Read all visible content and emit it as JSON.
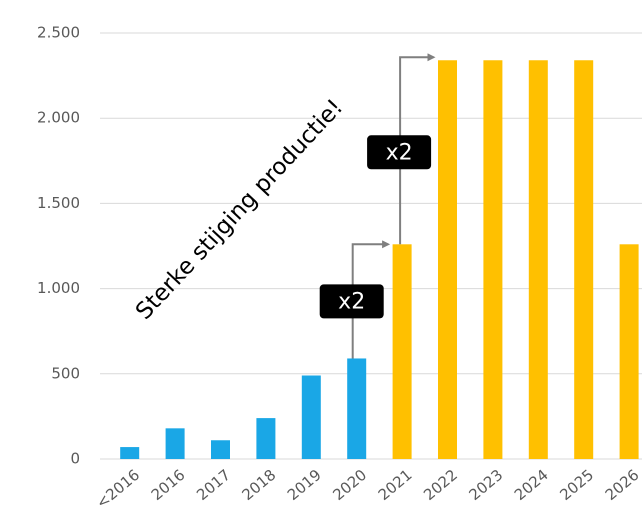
{
  "chart_data": {
    "type": "bar",
    "categories": [
      "<2016",
      "2016",
      "2017",
      "2018",
      "2019",
      "2020",
      "2021",
      "2022",
      "2023",
      "2024",
      "2025",
      "2026"
    ],
    "values": [
      70,
      180,
      110,
      240,
      490,
      590,
      1260,
      2340,
      2340,
      2340,
      2340,
      1260
    ],
    "colors": [
      "#1aa7e6",
      "#1aa7e6",
      "#1aa7e6",
      "#1aa7e6",
      "#1aa7e6",
      "#1aa7e6",
      "#ffc000",
      "#ffc000",
      "#ffc000",
      "#ffc000",
      "#ffc000",
      "#ffc000"
    ],
    "ylim": [
      0,
      2500
    ],
    "yticks": [
      0,
      500,
      {
        "value": 1000,
        "label": "1.000"
      },
      {
        "value": 1500,
        "label": "1.500"
      },
      {
        "value": 2000,
        "label": "2.000"
      },
      {
        "value": 2500,
        "label": "2.500"
      }
    ],
    "grid": true,
    "annotations": [
      "Sterke stijging productie!",
      "x2",
      "x2"
    ]
  }
}
